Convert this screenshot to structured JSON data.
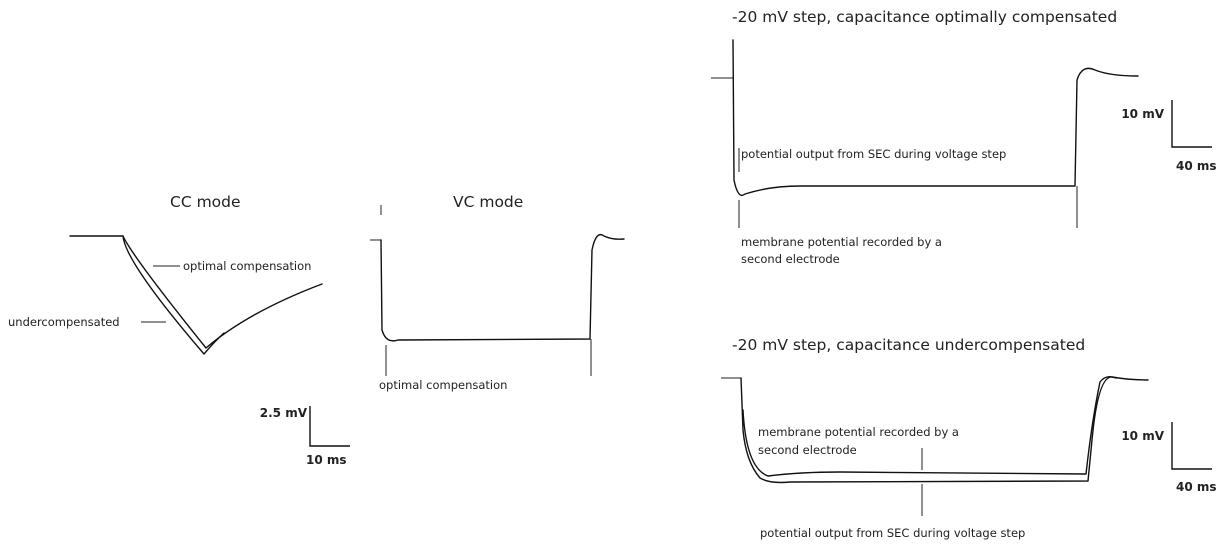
{
  "panels": {
    "cc_mode": {
      "title": "CC mode",
      "label_optimal": "optimal compensation",
      "label_under": "undercompensated"
    },
    "vc_mode": {
      "title": "VC mode",
      "label_optimal": "optimal compensation"
    },
    "scale_left": {
      "voltage": "2.5 mV",
      "time": "10 ms"
    },
    "top_right": {
      "title": "-20 mV step, capacitance optimally compensated",
      "label_sec": "potential output from SEC during voltage step",
      "label_membrane_line1": "membrane potential recorded by a",
      "label_membrane_line2": "second electrode",
      "scale": {
        "voltage": "10 mV",
        "time": "40 ms"
      }
    },
    "bottom_right": {
      "title": "-20 mV step, capacitance undercompensated",
      "label_membrane_line1": "membrane potential recorded by a",
      "label_membrane_line2": "second electrode",
      "label_sec": "potential output from SEC during voltage step",
      "scale": {
        "voltage": "10 mV",
        "time": "40 ms"
      }
    }
  }
}
